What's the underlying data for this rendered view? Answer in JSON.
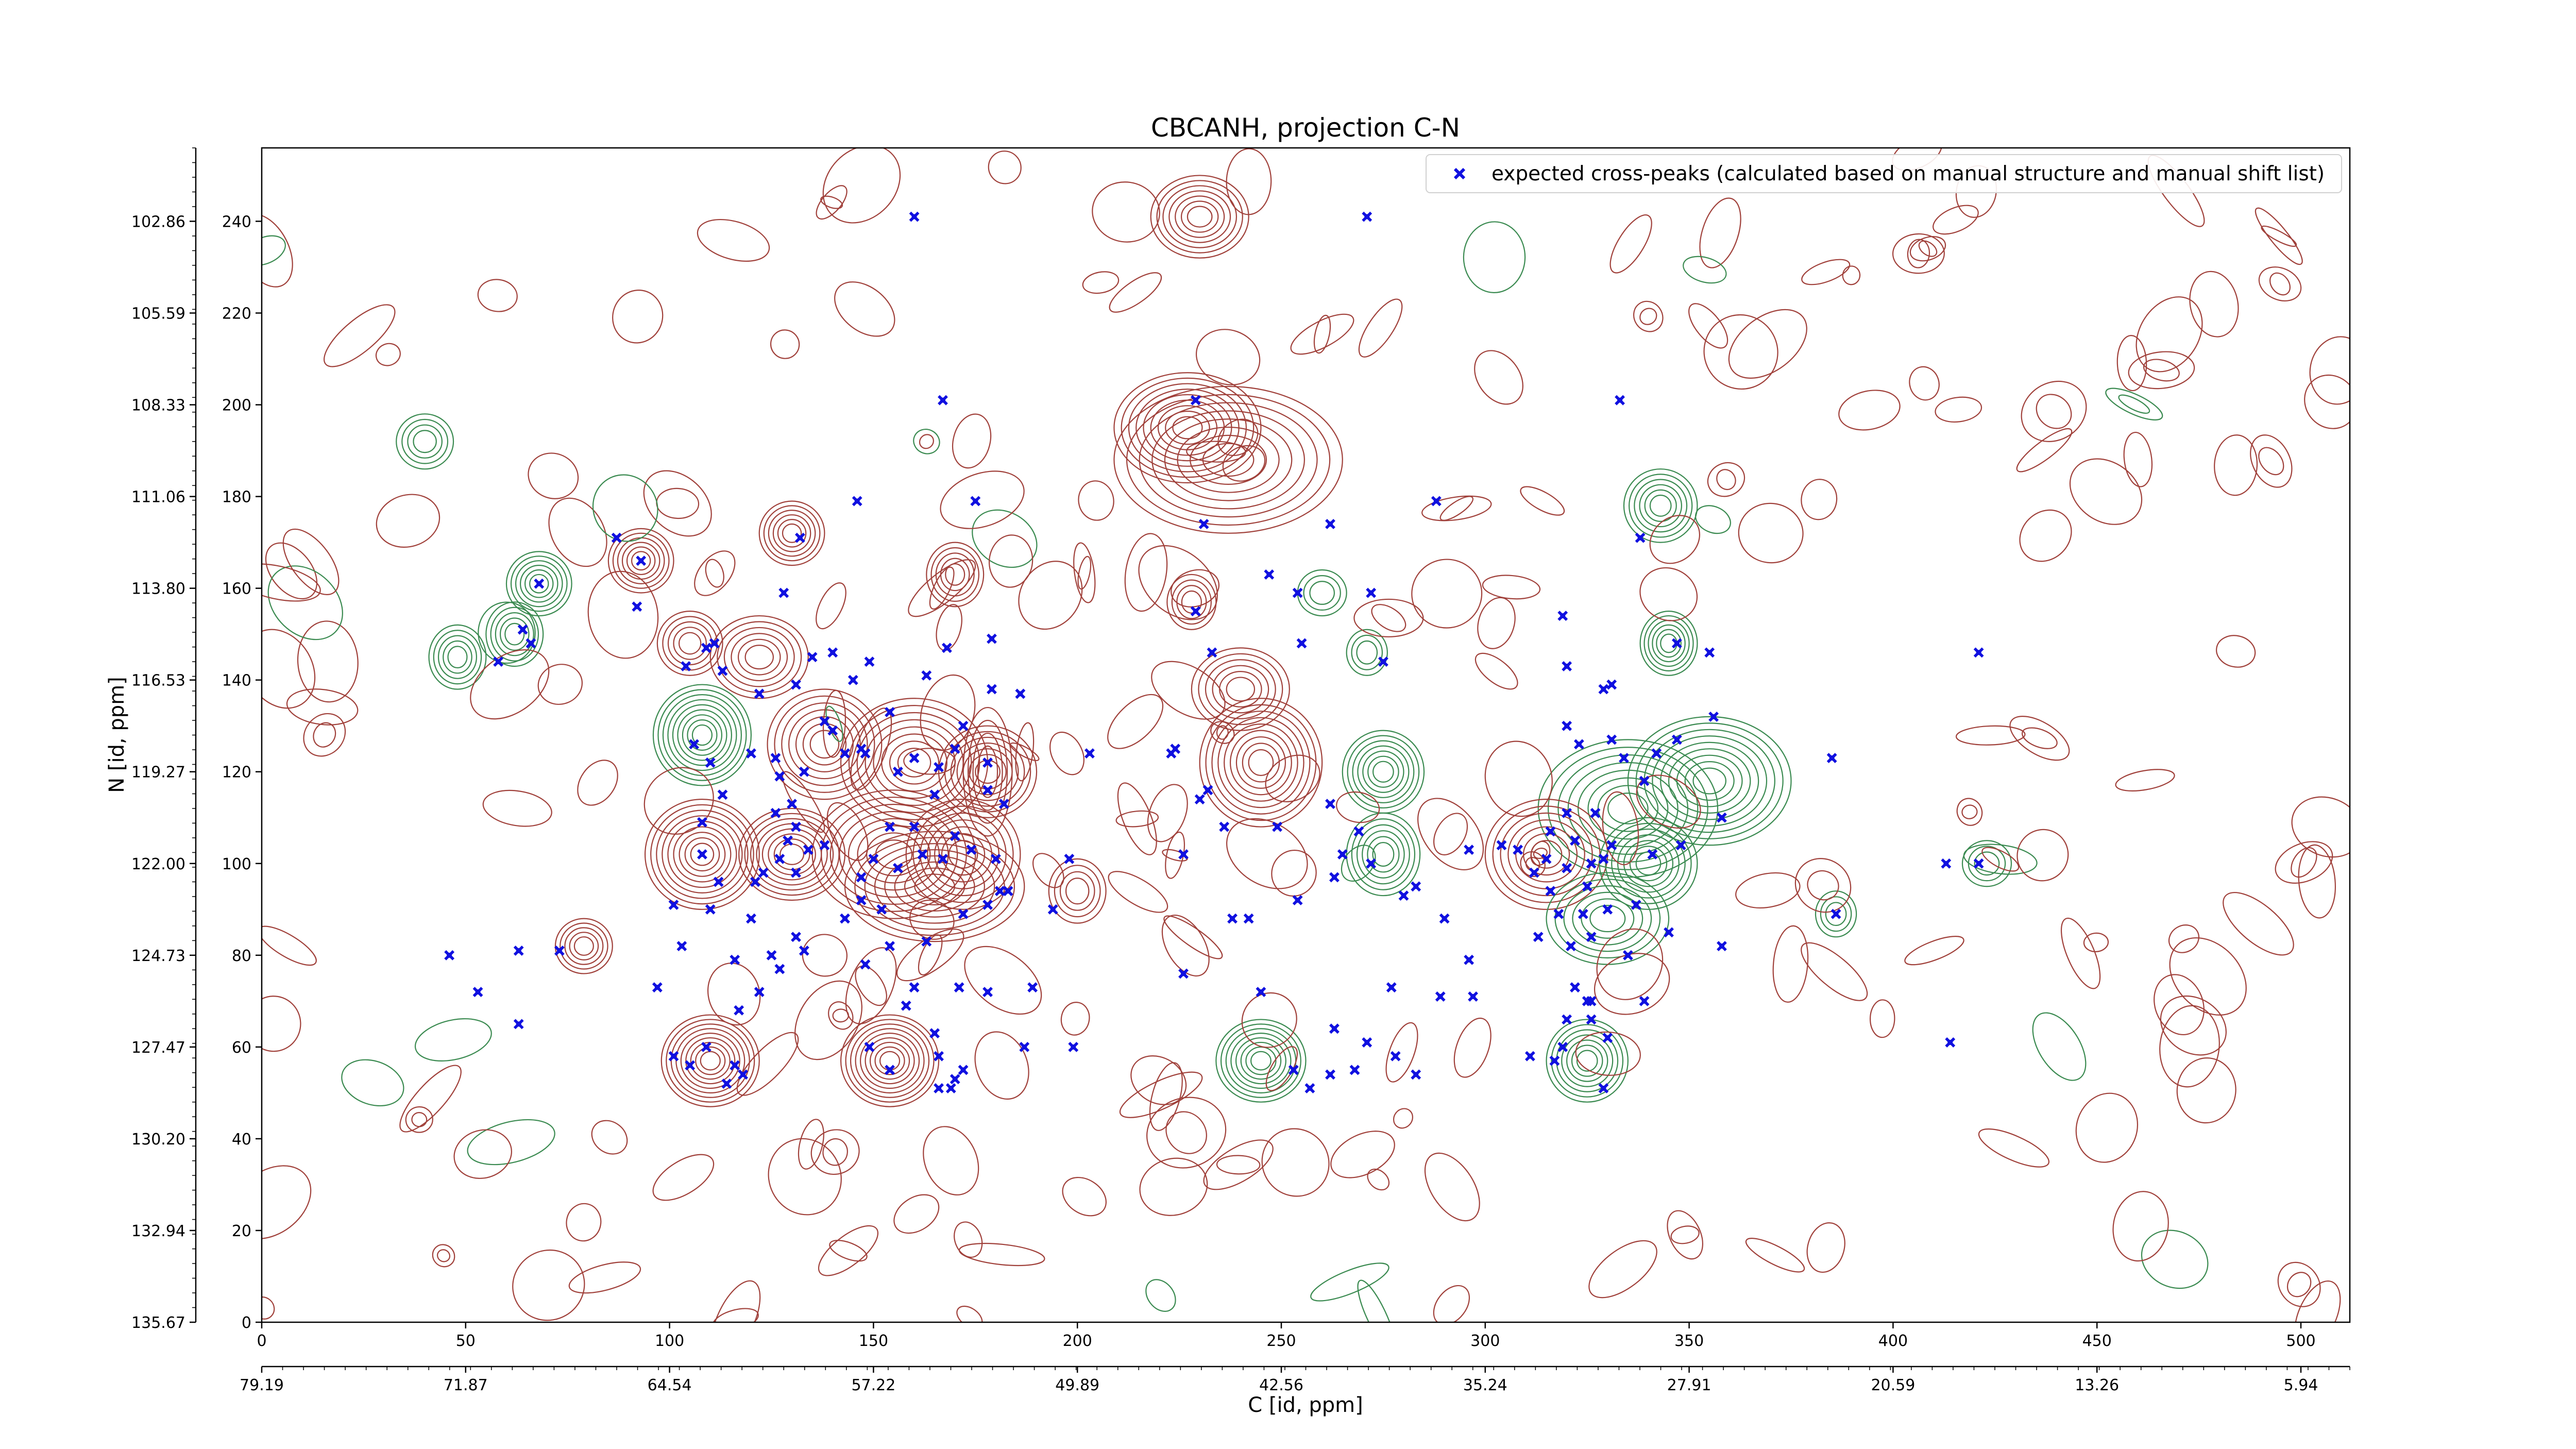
{
  "chart_data": {
    "type": "scatter",
    "title": "CBCANH, projection C-N",
    "xlabel": "C [id, ppm]",
    "ylabel": "N [id, ppm]",
    "xlim": [
      0,
      512
    ],
    "ylim": [
      0,
      256
    ],
    "x_ticks": [
      0,
      50,
      100,
      150,
      200,
      250,
      300,
      350,
      400,
      450,
      500
    ],
    "y_ticks": [
      0,
      20,
      40,
      60,
      80,
      100,
      120,
      140,
      160,
      180,
      200,
      220,
      240
    ],
    "secondary_x_tick_labels": [
      "79.19",
      "71.87",
      "64.54",
      "57.22",
      "49.89",
      "42.56",
      "35.24",
      "27.91",
      "20.59",
      "13.26",
      "5.94"
    ],
    "secondary_y_tick_labels": [
      "135.67",
      "132.94",
      "130.20",
      "127.47",
      "124.73",
      "122.00",
      "119.27",
      "116.53",
      "113.80",
      "111.06",
      "108.33",
      "105.59",
      "102.86"
    ],
    "legend_position": "top-right",
    "grid": false,
    "colors": {
      "points": "#1010e0",
      "contour_positive": "#a0403a",
      "contour_negative": "#3a8a50"
    },
    "series": [
      {
        "name": "expected cross-peaks (calculated based on manual structure and manual shift list)",
        "marker": "x",
        "points": [
          [
            160,
            241
          ],
          [
            271,
            241
          ],
          [
            167,
            201
          ],
          [
            333,
            201
          ],
          [
            229,
            201
          ],
          [
            231,
            174
          ],
          [
            288,
            179
          ],
          [
            175,
            179
          ],
          [
            146,
            179
          ],
          [
            87,
            171
          ],
          [
            132,
            171
          ],
          [
            93,
            166
          ],
          [
            338,
            171
          ],
          [
            247,
            163
          ],
          [
            262,
            174
          ],
          [
            68,
            161
          ],
          [
            58,
            144
          ],
          [
            64,
            151
          ],
          [
            66,
            148
          ],
          [
            92,
            156
          ],
          [
            128,
            159
          ],
          [
            111,
            148
          ],
          [
            104,
            143
          ],
          [
            113,
            142
          ],
          [
            131,
            139
          ],
          [
            122,
            137
          ],
          [
            135,
            145
          ],
          [
            140,
            146
          ],
          [
            145,
            140
          ],
          [
            149,
            144
          ],
          [
            138,
            131
          ],
          [
            147,
            125
          ],
          [
            154,
            133
          ],
          [
            163,
            141
          ],
          [
            168,
            147
          ],
          [
            179,
            149
          ],
          [
            179,
            138
          ],
          [
            186,
            137
          ],
          [
            203,
            124
          ],
          [
            229,
            155
          ],
          [
            233,
            146
          ],
          [
            254,
            159
          ],
          [
            272,
            159
          ],
          [
            275,
            144
          ],
          [
            255,
            148
          ],
          [
            109,
            147
          ],
          [
            319,
            154
          ],
          [
            347,
            148
          ],
          [
            355,
            146
          ],
          [
            329,
            138
          ],
          [
            320,
            143
          ],
          [
            331,
            139
          ],
          [
            323,
            126
          ],
          [
            320,
            130
          ],
          [
            331,
            127
          ],
          [
            334,
            123
          ],
          [
            342,
            124
          ],
          [
            339,
            118
          ],
          [
            347,
            127
          ],
          [
            356,
            132
          ],
          [
            385,
            123
          ],
          [
            421,
            146
          ],
          [
            106,
            126
          ],
          [
            110,
            122
          ],
          [
            120,
            124
          ],
          [
            126,
            123
          ],
          [
            127,
            119
          ],
          [
            133,
            120
          ],
          [
            140,
            129
          ],
          [
            143,
            124
          ],
          [
            148,
            124
          ],
          [
            156,
            120
          ],
          [
            160,
            123
          ],
          [
            166,
            121
          ],
          [
            170,
            125
          ],
          [
            172,
            130
          ],
          [
            178,
            122
          ],
          [
            178,
            116
          ],
          [
            182,
            113
          ],
          [
            160,
            108
          ],
          [
            165,
            115
          ],
          [
            162,
            102
          ],
          [
            154,
            108
          ],
          [
            150,
            101
          ],
          [
            147,
            97
          ],
          [
            156,
            99
          ],
          [
            167,
            101
          ],
          [
            170,
            106
          ],
          [
            174,
            103
          ],
          [
            180,
            101
          ],
          [
            183,
            94
          ],
          [
            130,
            113
          ],
          [
            126,
            111
          ],
          [
            131,
            108
          ],
          [
            134,
            103
          ],
          [
            131,
            98
          ],
          [
            127,
            101
          ],
          [
            123,
            98
          ],
          [
            121,
            96
          ],
          [
            138,
            104
          ],
          [
            129,
            105
          ],
          [
            147,
            92
          ],
          [
            152,
            90
          ],
          [
            143,
            88
          ],
          [
            131,
            84
          ],
          [
            120,
            88
          ],
          [
            110,
            90
          ],
          [
            112,
            96
          ],
          [
            108,
            102
          ],
          [
            108,
            109
          ],
          [
            113,
            115
          ],
          [
            172,
            89
          ],
          [
            178,
            91
          ],
          [
            181,
            94
          ],
          [
            194,
            90
          ],
          [
            198,
            101
          ],
          [
            163,
            83
          ],
          [
            154,
            82
          ],
          [
            148,
            78
          ],
          [
            133,
            81
          ],
          [
            125,
            80
          ],
          [
            127,
            77
          ],
          [
            122,
            72
          ],
          [
            116,
            79
          ],
          [
            117,
            68
          ],
          [
            160,
            73
          ],
          [
            158,
            69
          ],
          [
            171,
            73
          ],
          [
            178,
            72
          ],
          [
            189,
            73
          ],
          [
            199,
            60
          ],
          [
            238,
            88
          ],
          [
            230,
            114
          ],
          [
            232,
            116
          ],
          [
            236,
            108
          ],
          [
            249,
            108
          ],
          [
            262,
            113
          ],
          [
            269,
            107
          ],
          [
            265,
            102
          ],
          [
            272,
            100
          ],
          [
            226,
            102
          ],
          [
            242,
            88
          ],
          [
            254,
            92
          ],
          [
            263,
            97
          ],
          [
            280,
            93
          ],
          [
            283,
            95
          ],
          [
            290,
            88
          ],
          [
            296,
            103
          ],
          [
            304,
            104
          ],
          [
            308,
            103
          ],
          [
            312,
            98
          ],
          [
            315,
            101
          ],
          [
            320,
            99
          ],
          [
            326,
            100
          ],
          [
            322,
            105
          ],
          [
            316,
            107
          ],
          [
            320,
            111
          ],
          [
            327,
            111
          ],
          [
            331,
            104
          ],
          [
            329,
            101
          ],
          [
            325,
            95
          ],
          [
            316,
            94
          ],
          [
            318,
            89
          ],
          [
            324,
            89
          ],
          [
            330,
            90
          ],
          [
            326,
            84
          ],
          [
            321,
            82
          ],
          [
            313,
            84
          ],
          [
            335,
            80
          ],
          [
            345,
            85
          ],
          [
            358,
            82
          ],
          [
            337,
            91
          ],
          [
            341,
            102
          ],
          [
            348,
            104
          ],
          [
            358,
            110
          ],
          [
            386,
            89
          ],
          [
            421,
            100
          ],
          [
            413,
            100
          ],
          [
            320,
            66
          ],
          [
            326,
            66
          ],
          [
            319,
            60
          ],
          [
            330,
            62
          ],
          [
            317,
            57
          ],
          [
            311,
            58
          ],
          [
            329,
            51
          ],
          [
            326,
            70
          ],
          [
            339,
            70
          ],
          [
            262,
            54
          ],
          [
            278,
            58
          ],
          [
            271,
            61
          ],
          [
            268,
            55
          ],
          [
            253,
            55
          ],
          [
            257,
            51
          ],
          [
            283,
            54
          ],
          [
            46,
            80
          ],
          [
            63,
            81
          ],
          [
            73,
            81
          ],
          [
            53,
            72
          ],
          [
            63,
            65
          ],
          [
            101,
            91
          ],
          [
            103,
            82
          ],
          [
            97,
            73
          ],
          [
            109,
            60
          ],
          [
            116,
            56
          ],
          [
            118,
            54
          ],
          [
            114,
            52
          ],
          [
            101,
            58
          ],
          [
            105,
            56
          ],
          [
            165,
            63
          ],
          [
            166,
            58
          ],
          [
            172,
            55
          ],
          [
            170,
            53
          ],
          [
            169,
            51
          ],
          [
            149,
            60
          ],
          [
            154,
            55
          ],
          [
            166,
            51
          ],
          [
            187,
            60
          ],
          [
            277,
            73
          ],
          [
            289,
            71
          ],
          [
            297,
            71
          ],
          [
            322,
            73
          ],
          [
            325,
            70
          ],
          [
            414,
            61
          ],
          [
            226,
            76
          ],
          [
            296,
            79
          ],
          [
            263,
            64
          ],
          [
            245,
            72
          ],
          [
            223,
            124
          ],
          [
            224,
            125
          ]
        ]
      }
    ]
  }
}
